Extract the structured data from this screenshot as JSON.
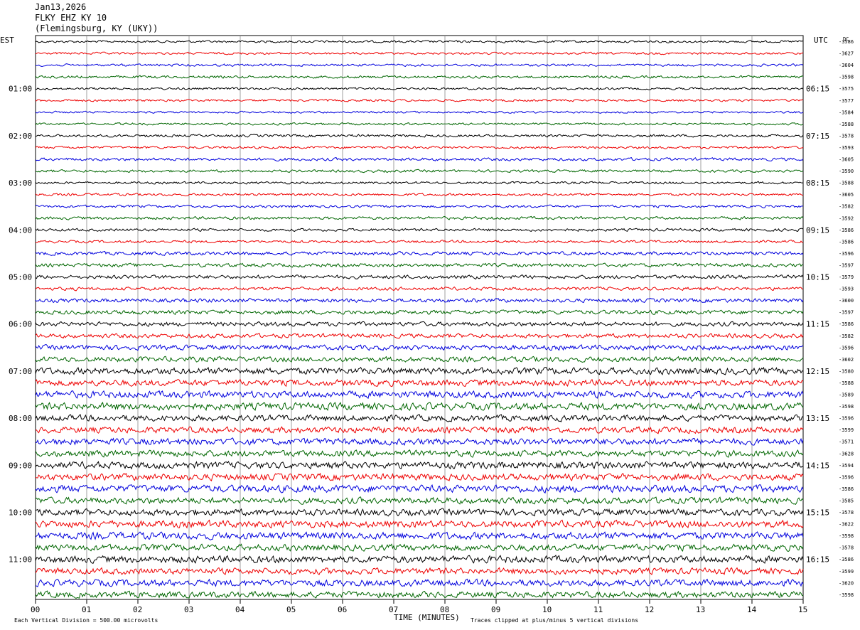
{
  "header": {
    "date": "Jan13,2026",
    "station": "FLKY EHZ KY 10",
    "location": "(Flemingsburg, KY (UKY))"
  },
  "left_tz": "EST",
  "right_tz": "UTC",
  "right_corner_label": "DC",
  "footer": {
    "scale_note": "Each Vertical Division =  500.00 microvolts",
    "x_title": "TIME (MINUTES)",
    "clip_note": "Traces clipped at plus/minus 5 vertical divisions"
  },
  "colors": {
    "trace_cycle": [
      "#000000",
      "#ee0000",
      "#0000dd",
      "#006600"
    ],
    "grid": "#888888"
  },
  "chart_data": {
    "type": "line",
    "title": "FLKY EHZ KY 10",
    "xlabel": "TIME (MINUTES)",
    "xlim": [
      0,
      15
    ],
    "x_ticks": [
      "00",
      "01",
      "02",
      "03",
      "04",
      "05",
      "06",
      "07",
      "08",
      "09",
      "10",
      "11",
      "12",
      "13",
      "14",
      "15"
    ],
    "rows_per_hour": 4,
    "row_count": 48,
    "left_hour_labels": [
      "01:00",
      "02:00",
      "03:00",
      "04:00",
      "05:00",
      "06:00",
      "07:00",
      "08:00",
      "09:00",
      "10:00",
      "11:00"
    ],
    "right_hour_labels": [
      "06:15",
      "07:15",
      "08:15",
      "09:15",
      "10:15",
      "11:15",
      "12:15",
      "13:15",
      "14:15",
      "15:15",
      "16:15"
    ],
    "dc_offsets": [
      "-3586",
      "-3627",
      "-3604",
      "-3598",
      "-3575",
      "-3577",
      "-3584",
      "-3588",
      "-3578",
      "-3593",
      "-3605",
      "-3590",
      "-3588",
      "-3605",
      "-3582",
      "-3592",
      "-3586",
      "-3586",
      "-3596",
      "-3597",
      "-3579",
      "-3593",
      "-3600",
      "-3597",
      "-3586",
      "-3582",
      "-3596",
      "-3602",
      "-3580",
      "-3588",
      "-3589",
      "-3598",
      "-3596",
      "-3599",
      "-3571",
      "-3628",
      "-3594",
      "-3596",
      "-3586",
      "-3585",
      "-3578",
      "-3622",
      "-3598",
      "-3578",
      "-3586",
      "-3599",
      "-3620",
      "-3598"
    ],
    "trace_amplitude_px": [
      1.2,
      1.2,
      1.3,
      1.4,
      1.2,
      1.2,
      1.1,
      1.2,
      1.4,
      1.3,
      1.6,
      1.4,
      1.3,
      1.3,
      1.4,
      1.6,
      1.5,
      1.4,
      1.9,
      1.9,
      2.0,
      1.8,
      2.1,
      2.2,
      2.3,
      2.3,
      2.7,
      2.8,
      3.6,
      3.4,
      3.7,
      3.9,
      3.3,
      3.3,
      3.5,
      3.4,
      3.7,
      3.6,
      3.9,
      3.4,
      3.5,
      3.8,
      3.9,
      3.5,
      3.8,
      3.4,
      3.6,
      3.3
    ]
  }
}
